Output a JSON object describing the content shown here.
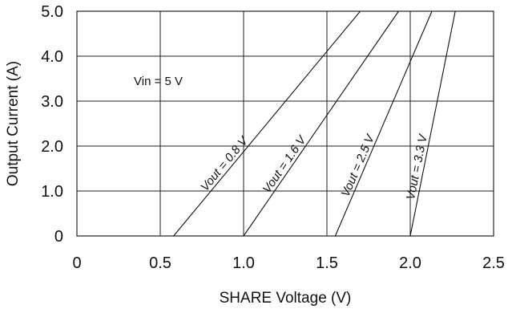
{
  "chart_data": {
    "type": "line",
    "xlabel": "SHARE Voltage (V)",
    "ylabel": "Output Current  (A)",
    "xlim": [
      0,
      2.5
    ],
    "ylim": [
      0,
      5.0
    ],
    "x_ticks": [
      "0",
      "0.5",
      "1.0",
      "1.5",
      "2.0",
      "2.5"
    ],
    "y_ticks": [
      "0",
      "1.0",
      "2.0",
      "3.0",
      "4.0",
      "5.0"
    ],
    "grid": true,
    "annotation": "Vin = 5 V",
    "series": [
      {
        "name": "Vout = 0.8 V",
        "x": [
          0.58,
          1.7
        ],
        "y": [
          0,
          5.0
        ]
      },
      {
        "name": "Vout = 1.6 V",
        "x": [
          1.0,
          1.93
        ],
        "y": [
          0,
          5.0
        ]
      },
      {
        "name": "Vout = 2.5 V",
        "x": [
          1.55,
          2.13
        ],
        "y": [
          0,
          5.0
        ]
      },
      {
        "name": "Vout = 3.3 V",
        "x": [
          2.0,
          2.27
        ],
        "y": [
          0,
          5.0
        ]
      }
    ]
  }
}
